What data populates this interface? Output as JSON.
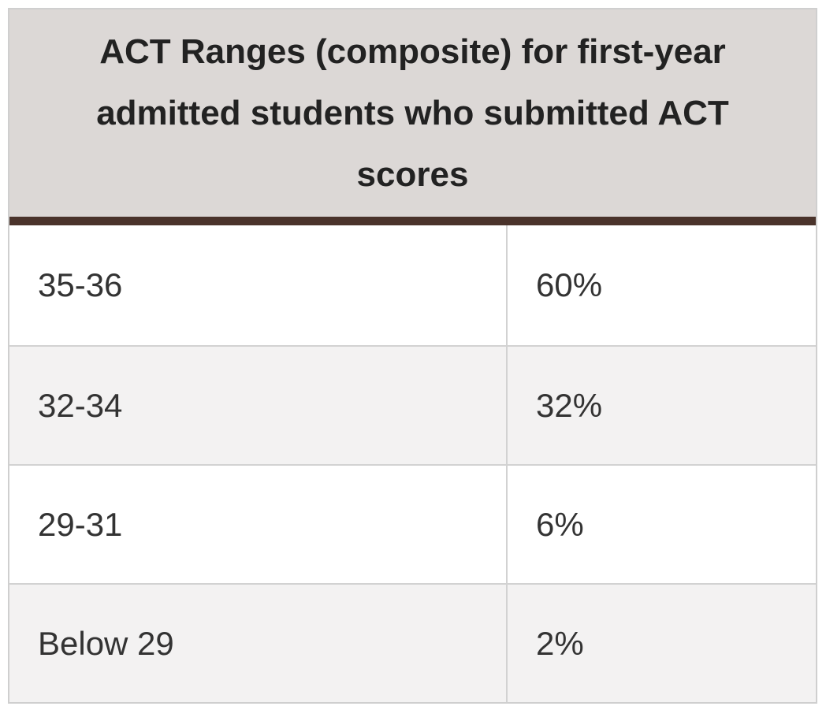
{
  "table": {
    "header": "ACT Ranges (composite) for first-year admitted students who submitted ACT scores",
    "rows": [
      {
        "range": "35-36",
        "percent": "60%"
      },
      {
        "range": "32-34",
        "percent": "32%"
      },
      {
        "range": "29-31",
        "percent": "6%"
      },
      {
        "range": "Below 29",
        "percent": "2%"
      }
    ]
  },
  "colors": {
    "header_bg": "#dcd8d6",
    "header_rule": "#4a332b",
    "row_alt_bg": "#f3f2f2",
    "grid": "#d2d2d2"
  }
}
